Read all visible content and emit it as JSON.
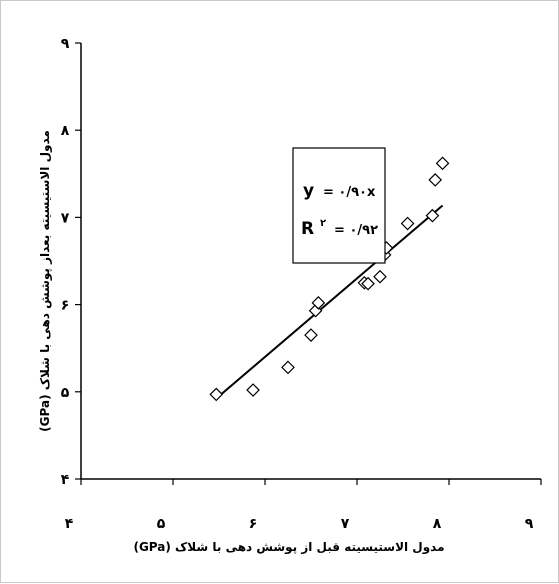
{
  "chart_data": {
    "type": "scatter",
    "xlabel": "مدول الاستیسیته قبل از پوشش دهی با شلاک (GPa)",
    "ylabel": "مدول الاستیسیته بعداز پوشش دهی با شلاک (GPa)",
    "xlim": [
      4,
      9
    ],
    "ylim": [
      4,
      9
    ],
    "x_ticks": [
      {
        "value": 4,
        "label": "۴"
      },
      {
        "value": 5,
        "label": "۵"
      },
      {
        "value": 6,
        "label": "۶"
      },
      {
        "value": 7,
        "label": "۷"
      },
      {
        "value": 8,
        "label": "۸"
      },
      {
        "value": 9,
        "label": "۹"
      }
    ],
    "y_ticks": [
      {
        "value": 4,
        "label": "۴"
      },
      {
        "value": 5,
        "label": "۵"
      },
      {
        "value": 6,
        "label": "۶"
      },
      {
        "value": 7,
        "label": "۷"
      },
      {
        "value": 8,
        "label": "۸"
      },
      {
        "value": 9,
        "label": "۹"
      }
    ],
    "series": [
      {
        "marker": "diamond",
        "points": [
          {
            "x": 5.47,
            "y": 4.97
          },
          {
            "x": 5.87,
            "y": 5.02
          },
          {
            "x": 6.25,
            "y": 5.28
          },
          {
            "x": 6.5,
            "y": 5.65
          },
          {
            "x": 6.55,
            "y": 5.93
          },
          {
            "x": 6.58,
            "y": 6.02
          },
          {
            "x": 7.08,
            "y": 6.25
          },
          {
            "x": 7.12,
            "y": 6.24
          },
          {
            "x": 7.25,
            "y": 6.32
          },
          {
            "x": 7.3,
            "y": 6.57
          },
          {
            "x": 7.32,
            "y": 6.65
          },
          {
            "x": 7.55,
            "y": 6.93
          },
          {
            "x": 7.82,
            "y": 7.02
          },
          {
            "x": 7.85,
            "y": 7.43
          },
          {
            "x": 7.93,
            "y": 7.62
          }
        ]
      }
    ],
    "trendline": {
      "slope": 0.9,
      "intercept": 0,
      "x_range": [
        5.47,
        7.93
      ]
    },
    "annotation": {
      "equation_lhs": "y",
      "equation_rhs": "= ۰/۹۰x",
      "r2_lhs": "R",
      "r2_sup": "۲",
      "r2_rhs": "= ۰/۹۲"
    },
    "grid": false,
    "colors": {
      "marker": "#000000",
      "line": "#000000"
    }
  }
}
